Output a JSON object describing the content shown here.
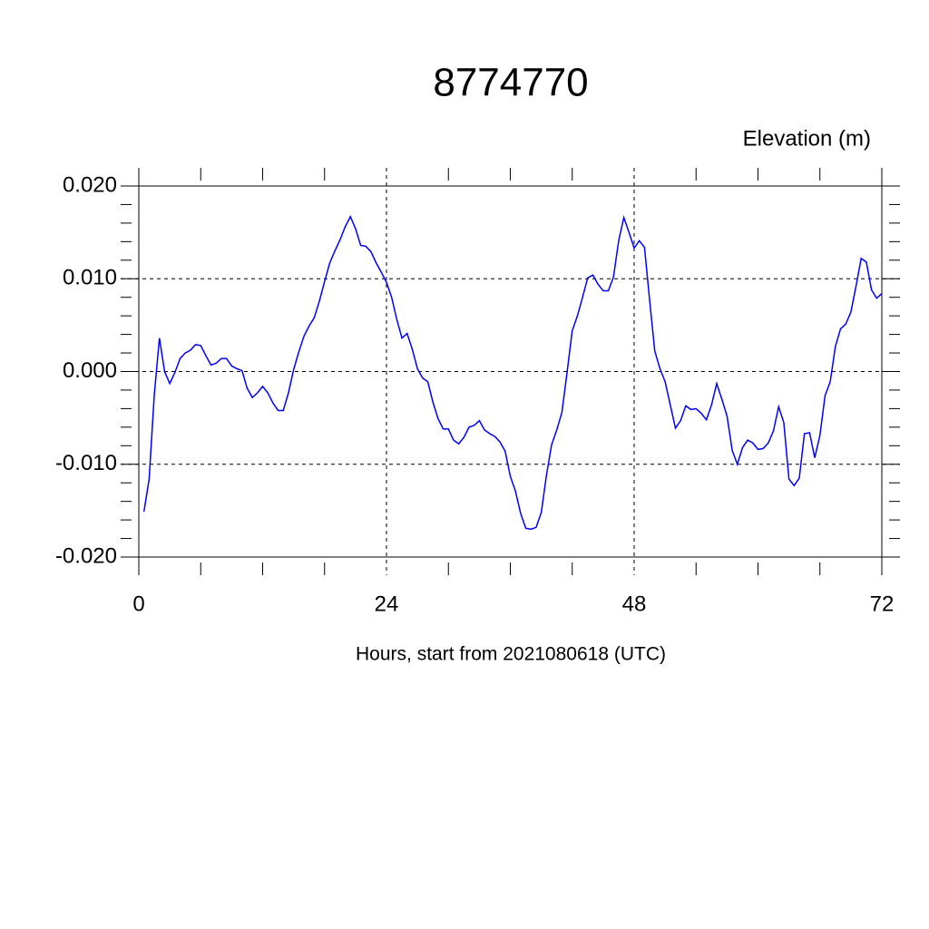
{
  "chart_data": {
    "type": "line",
    "title": "8774770",
    "subtitle": "Elevation (m)",
    "xlabel": "Hours, start from 2021080618 (UTC)",
    "xlim": [
      0,
      72
    ],
    "ylim": [
      -0.02,
      0.02
    ],
    "xticks": [
      0,
      24,
      48,
      72
    ],
    "yticks": [
      {
        "value": -0.02,
        "label": "-0.020"
      },
      {
        "value": -0.01,
        "label": "-0.010"
      },
      {
        "value": 0,
        "label": "0.000"
      },
      {
        "value": 0.01,
        "label": "0.010"
      },
      {
        "value": 0.02,
        "label": "0.020"
      }
    ],
    "xminorticks": [
      6,
      12,
      18,
      30,
      36,
      42,
      54,
      60,
      66
    ],
    "yminorticks": [
      -0.018,
      -0.016,
      -0.014,
      -0.012,
      -0.008,
      -0.006,
      -0.004,
      -0.002,
      0.002,
      0.004,
      0.006,
      0.008,
      0.012,
      0.014,
      0.016,
      0.018
    ],
    "grid": true,
    "x": [
      0.5,
      1,
      1.5,
      2,
      2.5,
      3,
      3.5,
      4,
      4.5,
      5,
      5.5,
      6,
      6.5,
      7,
      7.5,
      8,
      8.5,
      9,
      9.5,
      10,
      10.5,
      11,
      11.5,
      12,
      12.5,
      13,
      13.5,
      14,
      14.5,
      15,
      15.5,
      16,
      16.5,
      17,
      17.5,
      18,
      18.5,
      19,
      19.5,
      20,
      20.5,
      21,
      21.5,
      22,
      22.5,
      23,
      23.5,
      24,
      24.5,
      25,
      25.5,
      26,
      26.5,
      27,
      27.5,
      28,
      28.5,
      29,
      29.5,
      30,
      30.5,
      31,
      31.5,
      32,
      32.5,
      33,
      33.5,
      34,
      34.5,
      35,
      35.5,
      36,
      36.5,
      37,
      37.5,
      38,
      38.5,
      39,
      39.5,
      40,
      40.5,
      41,
      41.5,
      42,
      42.5,
      43,
      43.5,
      44,
      44.5,
      45,
      45.5,
      46,
      46.5,
      47,
      47.5,
      48,
      48.5,
      49,
      49.5,
      50,
      50.5,
      51,
      51.5,
      52,
      52.5,
      53,
      53.5,
      54,
      54.5,
      55,
      55.5,
      56,
      56.5,
      57,
      57.5,
      58,
      58.5,
      59,
      59.5,
      60,
      60.5,
      61,
      61.5,
      62,
      62.5,
      63,
      63.5,
      64,
      64.5,
      65,
      65.5,
      66,
      66.5,
      67,
      67.5,
      68,
      68.5,
      69,
      69.5,
      70,
      70.5,
      71,
      71.5,
      72
    ],
    "series": [
      {
        "color": "#0000ff",
        "values": [
          -0.0151,
          -0.0116,
          -0.0025,
          0.0036,
          0.0,
          -0.0013,
          -0.0001,
          0.0014,
          0.002,
          0.0023,
          0.0029,
          0.0028,
          0.0017,
          0.0007,
          0.0009,
          0.0014,
          0.0014,
          0.0006,
          0.0003,
          0.0001,
          -0.0018,
          -0.0028,
          -0.0023,
          -0.0016,
          -0.0023,
          -0.0034,
          -0.0042,
          -0.0042,
          -0.0023,
          0.0002,
          0.0021,
          0.0038,
          0.0049,
          0.0058,
          0.0076,
          0.0097,
          0.0117,
          0.013,
          0.0142,
          0.0156,
          0.0167,
          0.0154,
          0.0136,
          0.0135,
          0.0129,
          0.0117,
          0.0107,
          0.0096,
          0.008,
          0.0056,
          0.0036,
          0.0041,
          0.0024,
          0.0003,
          -0.0007,
          -0.0011,
          -0.0033,
          -0.0051,
          -0.0062,
          -0.0062,
          -0.0074,
          -0.0078,
          -0.0071,
          -0.006,
          -0.0058,
          -0.0053,
          -0.0063,
          -0.0067,
          -0.007,
          -0.0076,
          -0.0086,
          -0.0113,
          -0.0129,
          -0.0153,
          -0.0169,
          -0.017,
          -0.0168,
          -0.0152,
          -0.0112,
          -0.0079,
          -0.0063,
          -0.0044,
          -0.0001,
          0.0044,
          0.006,
          0.008,
          0.0101,
          0.0104,
          0.0094,
          0.0087,
          0.0087,
          0.0102,
          0.0141,
          0.0166,
          0.015,
          0.0133,
          0.0141,
          0.0134,
          0.0077,
          0.0022,
          0.0003,
          -0.0011,
          -0.0036,
          -0.0061,
          -0.0053,
          -0.0037,
          -0.0041,
          -0.004,
          -0.0045,
          -0.0052,
          -0.0036,
          -0.0013,
          -0.003,
          -0.0048,
          -0.0085,
          -0.01,
          -0.0082,
          -0.0074,
          -0.0077,
          -0.0084,
          -0.0083,
          -0.0077,
          -0.0064,
          -0.0038,
          -0.0055,
          -0.0116,
          -0.0123,
          -0.0115,
          -0.0067,
          -0.0066,
          -0.0093,
          -0.0069,
          -0.0026,
          -0.0011,
          0.0027,
          0.0046,
          0.0051,
          0.0064,
          0.0092,
          0.0122,
          0.0118,
          0.0088,
          0.0079,
          0.0084
        ]
      }
    ]
  }
}
